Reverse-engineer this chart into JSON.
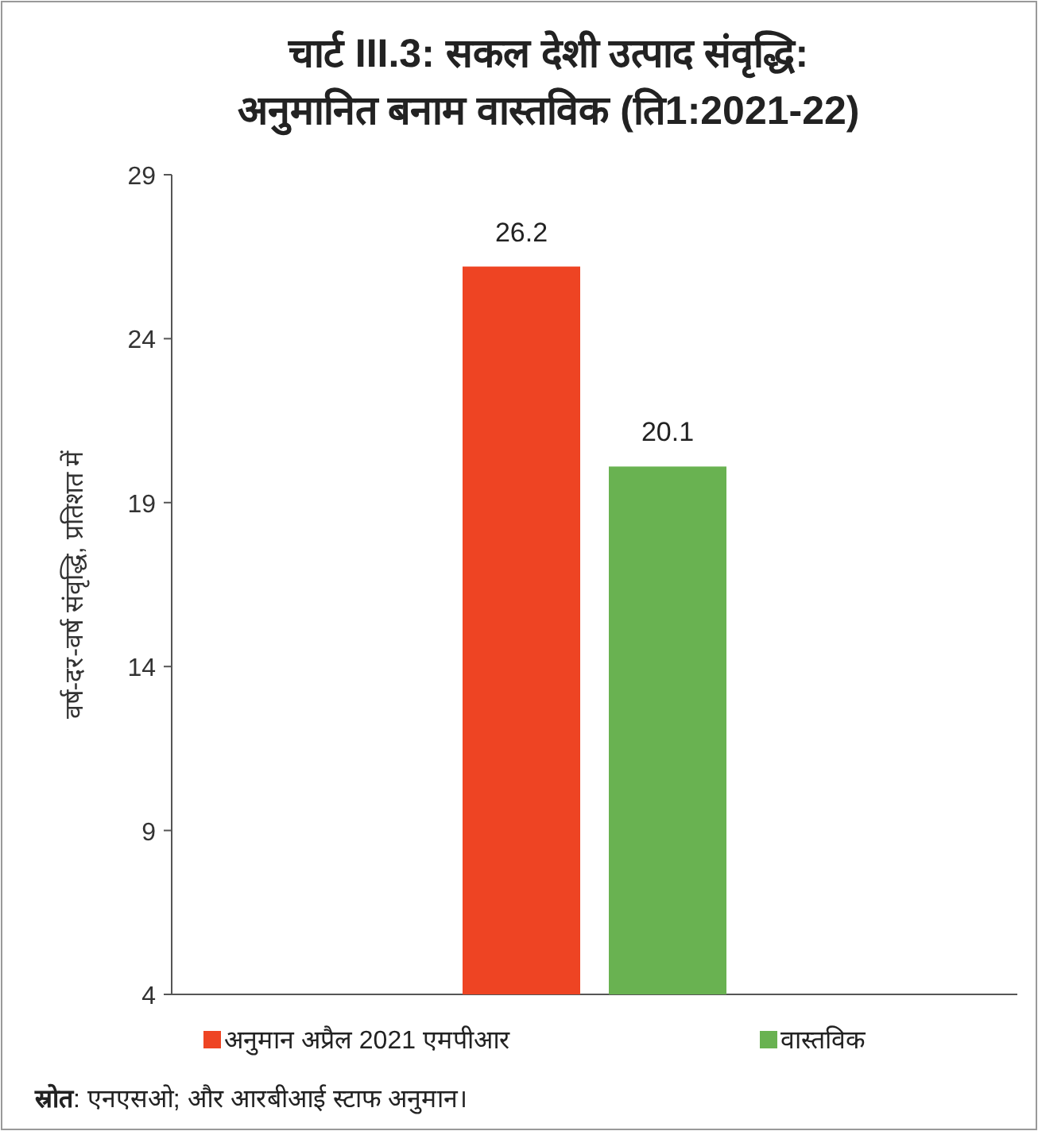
{
  "chart_data": {
    "type": "bar",
    "title": "चार्ट III.3: सकल देशी उत्पाद संवृद्धि: अनुमानित बनाम वास्तविक (ति1:2021-22)",
    "ylabel": "वर्ष-दर-वर्ष संवृद्धि, प्रतिशत में",
    "categories": [
      null
    ],
    "series": [
      {
        "name": "अनुमान अप्रैल 2021 एमपीआर",
        "color": "#ee4423",
        "values": [
          26.2
        ]
      },
      {
        "name": "वास्तविक",
        "color": "#69b251",
        "values": [
          20.1
        ]
      }
    ],
    "ylim": [
      4,
      29
    ],
    "yticks": [
      4,
      9,
      14,
      19,
      24,
      29
    ],
    "data_labels": true,
    "legend": "bottom",
    "grid": false,
    "annotations": [
      "स्रोत: एनएसओ; और आरबीआई स्टाफ अनुमान।"
    ]
  }
}
